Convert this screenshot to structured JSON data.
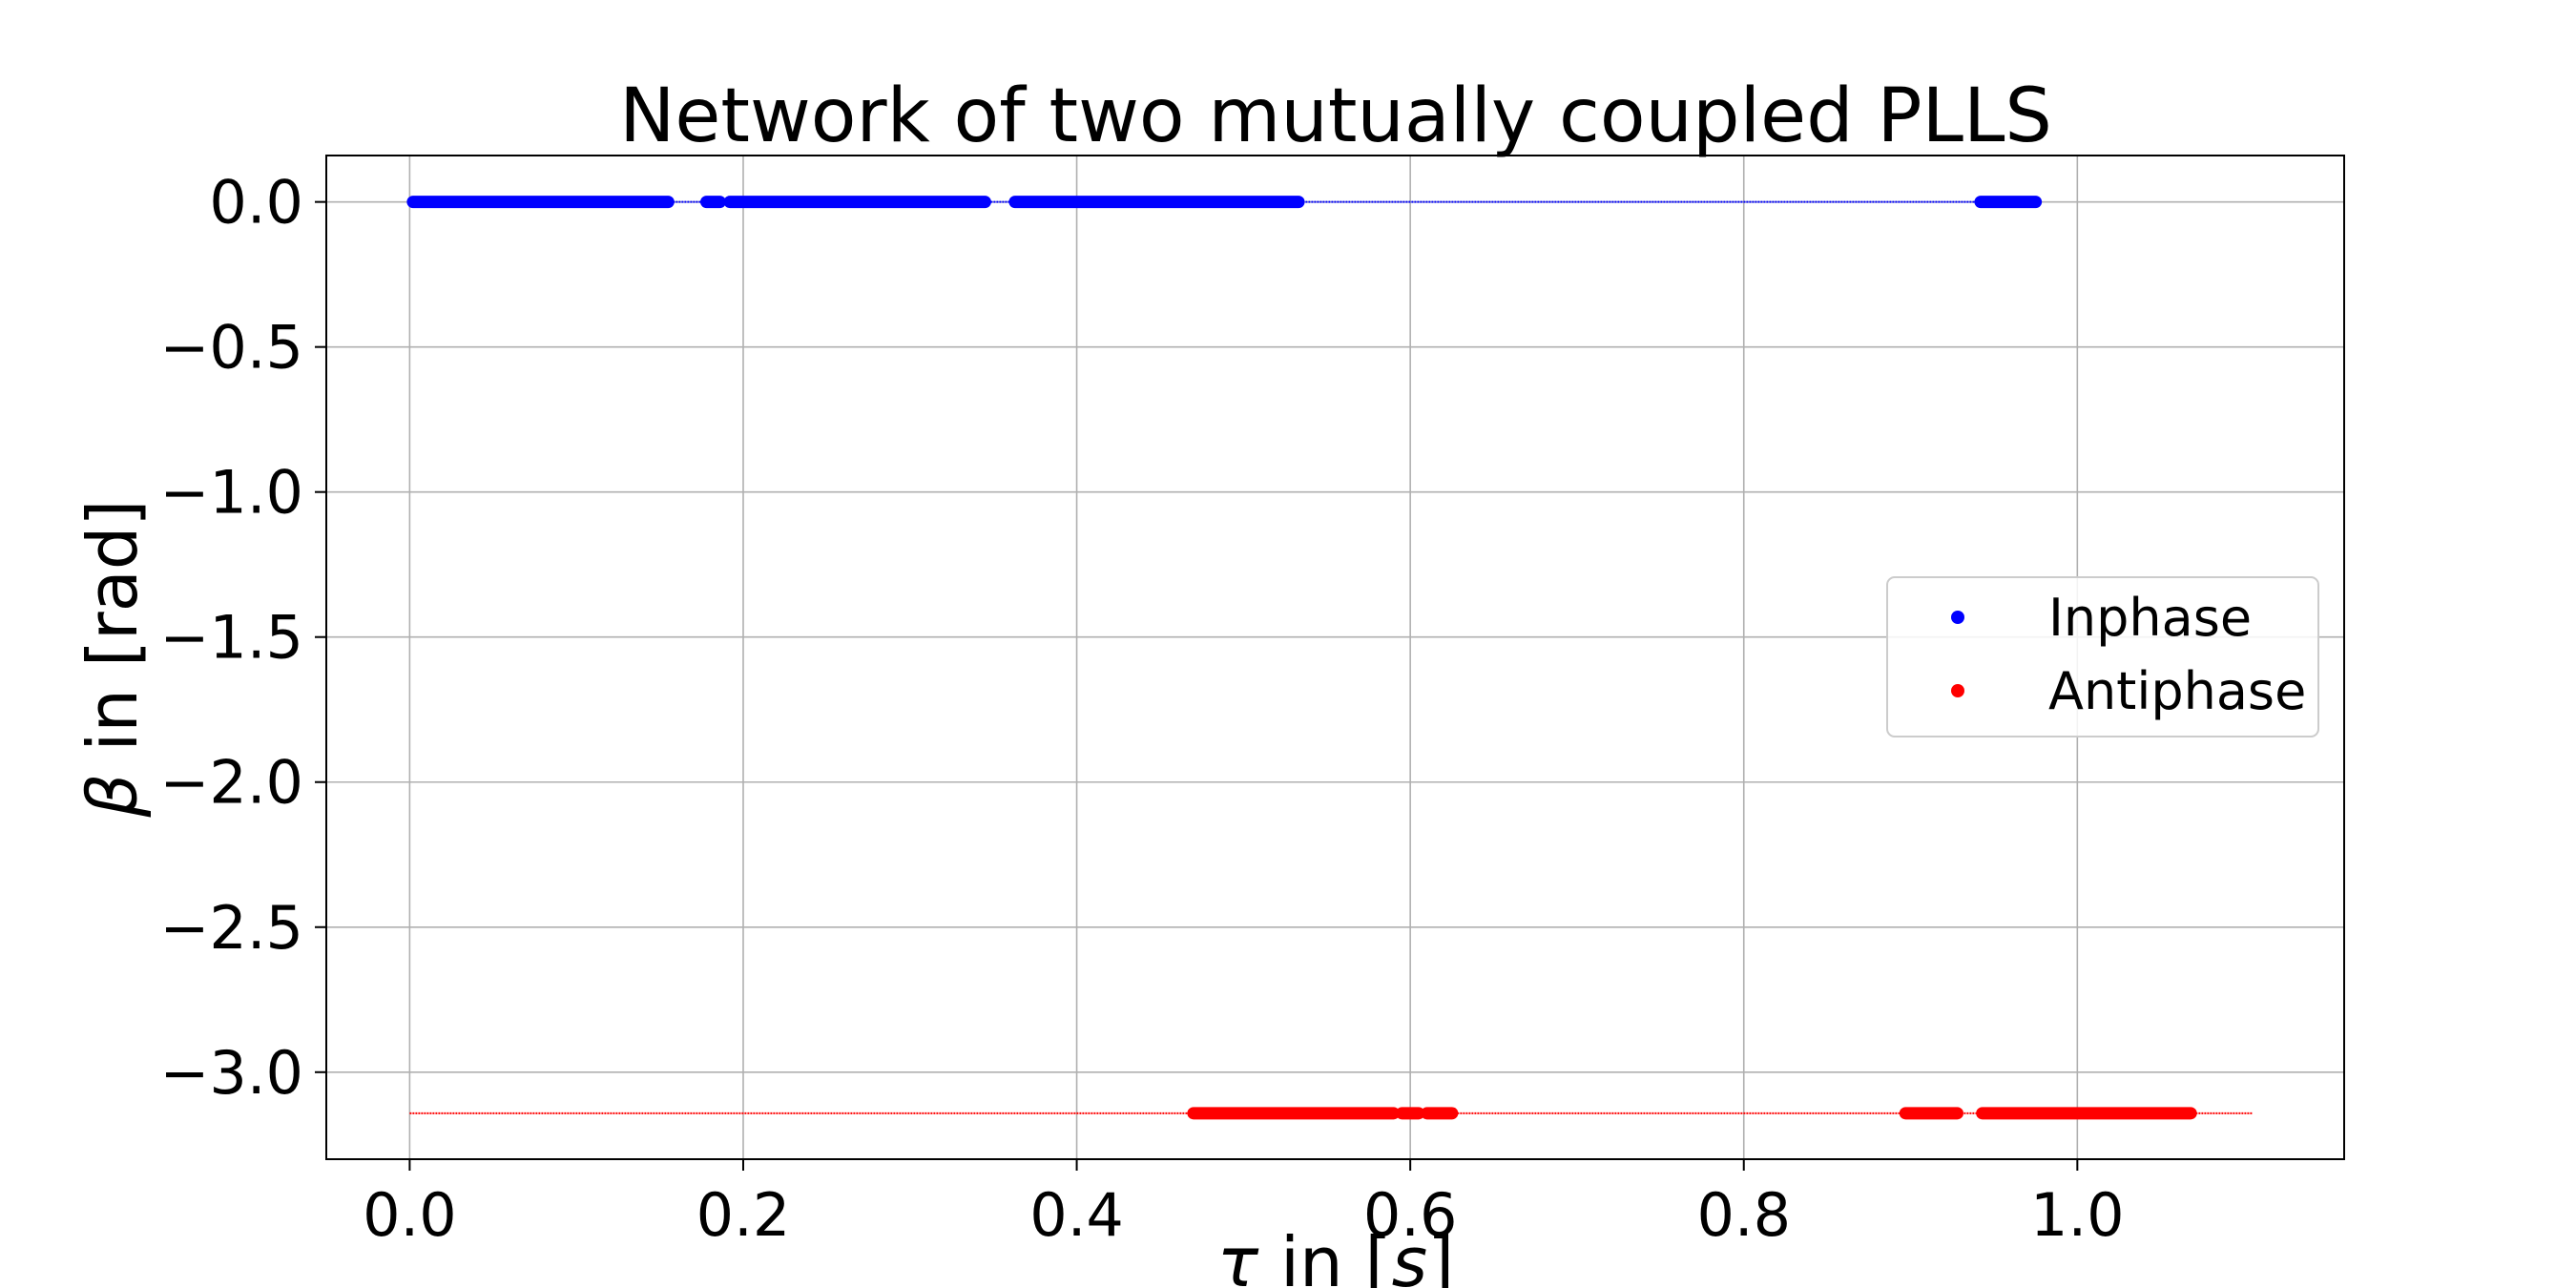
{
  "chart_data": {
    "type": "scatter",
    "title": "Network of two mutually coupled PLLS",
    "xlabel_parts": [
      "τ",
      " in [",
      "s",
      "]"
    ],
    "ylabel_parts": [
      "β",
      " in [rad]"
    ],
    "xlim": [
      -0.05,
      1.16
    ],
    "ylim": [
      -3.3,
      0.16
    ],
    "x_ticks": [
      0.0,
      0.2,
      0.4,
      0.6,
      0.8,
      1.0
    ],
    "x_tick_labels": [
      "0.0",
      "0.2",
      "0.4",
      "0.6",
      "0.8",
      "1.0"
    ],
    "y_ticks": [
      0.0,
      -0.5,
      -1.0,
      -1.5,
      -2.0,
      -2.5,
      -3.0
    ],
    "y_tick_labels": [
      "0.0",
      "−0.5",
      "−1.0",
      "−1.5",
      "−2.0",
      "−2.5",
      "−3.0"
    ],
    "grid": true,
    "legend_position": "center-right",
    "series": [
      {
        "name": "Inphase",
        "color": "#0000ff",
        "y": 0.0,
        "thin_range": [
          0.0,
          0.975
        ],
        "dense_ranges": [
          [
            0.002,
            0.155
          ],
          [
            0.178,
            0.186
          ],
          [
            0.192,
            0.345
          ],
          [
            0.363,
            0.533
          ],
          [
            0.942,
            0.975
          ]
        ]
      },
      {
        "name": "Antiphase",
        "color": "#ff0000",
        "y": -3.14159,
        "thin_range": [
          0.0,
          1.105
        ],
        "dense_ranges": [
          [
            0.47,
            0.59
          ],
          [
            0.595,
            0.605
          ],
          [
            0.61,
            0.625
          ],
          [
            0.897,
            0.928
          ],
          [
            0.943,
            1.068
          ]
        ]
      }
    ]
  }
}
